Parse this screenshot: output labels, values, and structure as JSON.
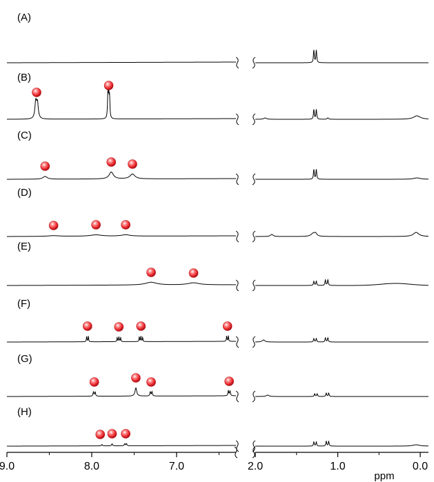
{
  "chart_data": {
    "type": "line",
    "xlabel": "ppm",
    "x_reversed": true,
    "x_break": true,
    "segments": [
      {
        "xlim": [
          9.0,
          6.3
        ],
        "ticks": [
          9.0,
          8.0,
          7.0
        ],
        "tick_labels": [
          "9.0",
          "8.0",
          "7.0"
        ]
      },
      {
        "xlim": [
          2.0,
          -0.1
        ],
        "ticks": [
          2.0,
          1.0,
          0.0
        ],
        "tick_labels": [
          "2.0",
          "1.0",
          "0.0"
        ]
      }
    ],
    "colors": {
      "marker": "#e8262b",
      "line": "#000000"
    },
    "spectra": [
      {
        "label": "(A)",
        "markers": [],
        "peaks": [
          {
            "ppm": 1.29,
            "h": 18,
            "w": 0.006
          },
          {
            "ppm": 1.26,
            "h": 18,
            "w": 0.006
          }
        ],
        "bumps": []
      },
      {
        "label": "(B)",
        "markers": [
          8.65,
          7.8
        ],
        "peaks": [
          {
            "ppm": 8.66,
            "h": 24,
            "w": 0.012
          },
          {
            "ppm": 8.64,
            "h": 22,
            "w": 0.012
          },
          {
            "ppm": 7.81,
            "h": 34,
            "w": 0.005
          },
          {
            "ppm": 7.8,
            "h": 34,
            "w": 0.005
          },
          {
            "ppm": 7.79,
            "h": 30,
            "w": 0.005
          },
          {
            "ppm": 1.29,
            "h": 14,
            "w": 0.006
          },
          {
            "ppm": 1.26,
            "h": 14,
            "w": 0.006
          },
          {
            "ppm": 1.12,
            "h": 2,
            "w": 0.01
          },
          {
            "ppm": 1.88,
            "h": 2,
            "w": 0.02
          },
          {
            "ppm": 0.04,
            "h": 5,
            "w": 0.05
          }
        ],
        "bumps": []
      },
      {
        "label": "(C)",
        "markers": [
          8.55,
          7.77,
          7.52
        ],
        "peaks": [
          {
            "ppm": 8.55,
            "h": 4,
            "w": 0.03
          },
          {
            "ppm": 7.77,
            "h": 10,
            "w": 0.03
          },
          {
            "ppm": 7.52,
            "h": 7,
            "w": 0.035
          },
          {
            "ppm": 1.29,
            "h": 14,
            "w": 0.006
          },
          {
            "ppm": 1.26,
            "h": 14,
            "w": 0.006
          },
          {
            "ppm": 0.04,
            "h": 2,
            "w": 0.05
          }
        ],
        "bumps": []
      },
      {
        "label": "(D)",
        "markers": [
          8.45,
          7.95,
          7.6
        ],
        "peaks": [
          {
            "ppm": 8.45,
            "h": 1,
            "w": 0.08
          },
          {
            "ppm": 7.95,
            "h": 2,
            "w": 0.08
          },
          {
            "ppm": 7.6,
            "h": 2,
            "w": 0.06
          },
          {
            "ppm": 1.8,
            "h": 3,
            "w": 0.02
          },
          {
            "ppm": 1.3,
            "h": 4,
            "w": 0.03
          },
          {
            "ppm": 1.27,
            "h": 4,
            "w": 0.02
          },
          {
            "ppm": 0.05,
            "h": 6,
            "w": 0.04
          }
        ],
        "bumps": []
      },
      {
        "label": "(E)",
        "markers": [
          7.3,
          6.8
        ],
        "peaks": [
          {
            "ppm": 7.3,
            "h": 4,
            "w": 0.08
          },
          {
            "ppm": 6.8,
            "h": 3,
            "w": 0.08
          },
          {
            "ppm": 1.29,
            "h": 6,
            "w": 0.006
          },
          {
            "ppm": 1.26,
            "h": 6,
            "w": 0.006
          },
          {
            "ppm": 1.15,
            "h": 8,
            "w": 0.006
          },
          {
            "ppm": 1.12,
            "h": 8,
            "w": 0.006
          }
        ],
        "bumps": [
          {
            "ppm": 0.3,
            "h": 3,
            "w": 0.25
          }
        ]
      },
      {
        "label": "(F)",
        "markers": [
          8.05,
          7.68,
          7.42,
          6.4
        ],
        "peaks": [
          {
            "ppm": 8.06,
            "h": 8,
            "w": 0.004
          },
          {
            "ppm": 8.04,
            "h": 8,
            "w": 0.004
          },
          {
            "ppm": 7.7,
            "h": 6,
            "w": 0.004
          },
          {
            "ppm": 7.68,
            "h": 7,
            "w": 0.004
          },
          {
            "ppm": 7.66,
            "h": 6,
            "w": 0.004
          },
          {
            "ppm": 7.44,
            "h": 7,
            "w": 0.004
          },
          {
            "ppm": 7.42,
            "h": 8,
            "w": 0.004
          },
          {
            "ppm": 7.4,
            "h": 6,
            "w": 0.004
          },
          {
            "ppm": 6.41,
            "h": 8,
            "w": 0.004
          },
          {
            "ppm": 6.39,
            "h": 8,
            "w": 0.004
          },
          {
            "ppm": 1.9,
            "h": 3,
            "w": 0.02
          },
          {
            "ppm": 1.29,
            "h": 5,
            "w": 0.006
          },
          {
            "ppm": 1.26,
            "h": 5,
            "w": 0.006
          },
          {
            "ppm": 1.15,
            "h": 6,
            "w": 0.006
          },
          {
            "ppm": 1.12,
            "h": 6,
            "w": 0.006
          }
        ],
        "bumps": []
      },
      {
        "label": "(G)",
        "markers": [
          7.97,
          7.48,
          7.3,
          6.38
        ],
        "peaks": [
          {
            "ppm": 7.98,
            "h": 6,
            "w": 0.006
          },
          {
            "ppm": 7.96,
            "h": 6,
            "w": 0.006
          },
          {
            "ppm": 7.48,
            "h": 12,
            "w": 0.012
          },
          {
            "ppm": 7.31,
            "h": 6,
            "w": 0.006
          },
          {
            "ppm": 7.29,
            "h": 6,
            "w": 0.006
          },
          {
            "ppm": 6.39,
            "h": 7,
            "w": 0.006
          },
          {
            "ppm": 6.37,
            "h": 7,
            "w": 0.006
          },
          {
            "ppm": 1.85,
            "h": 2,
            "w": 0.02
          },
          {
            "ppm": 1.28,
            "h": 4,
            "w": 0.006
          },
          {
            "ppm": 1.25,
            "h": 4,
            "w": 0.006
          },
          {
            "ppm": 1.14,
            "h": 5,
            "w": 0.006
          },
          {
            "ppm": 1.11,
            "h": 5,
            "w": 0.006
          }
        ],
        "bumps": []
      },
      {
        "label": "(H)",
        "markers": [
          7.9,
          7.76,
          7.6
        ],
        "peaks": [
          {
            "ppm": 7.88,
            "h": 2,
            "w": 0.006
          },
          {
            "ppm": 7.76,
            "h": 3,
            "w": 0.006
          },
          {
            "ppm": 7.61,
            "h": 3,
            "w": 0.006
          },
          {
            "ppm": 7.59,
            "h": 3,
            "w": 0.006
          },
          {
            "ppm": 1.29,
            "h": 6,
            "w": 0.006
          },
          {
            "ppm": 1.26,
            "h": 6,
            "w": 0.006
          },
          {
            "ppm": 1.14,
            "h": 7,
            "w": 0.006
          },
          {
            "ppm": 1.11,
            "h": 7,
            "w": 0.006
          },
          {
            "ppm": 0.05,
            "h": 2,
            "w": 0.05
          }
        ],
        "bumps": []
      }
    ]
  }
}
